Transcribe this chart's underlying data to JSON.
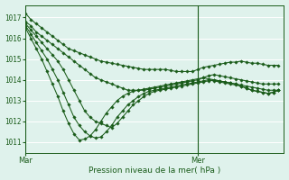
{
  "title": "Pression niveau de la mer( hPa )",
  "xlabel_mar": "Mar",
  "xlabel_mer": "Mer",
  "bg_color": "#dff2ec",
  "grid_color": "#ffffff",
  "line_color": "#1a5c1a",
  "ylim": [
    1010.5,
    1017.6
  ],
  "yticks": [
    1011,
    1012,
    1013,
    1014,
    1015,
    1016,
    1017
  ],
  "xlim": [
    0,
    48
  ],
  "mar_x": 0,
  "mer_x": 32,
  "series": [
    [
      1017.2,
      1016.9,
      1016.7,
      1016.5,
      1016.3,
      1016.1,
      1015.9,
      1015.7,
      1015.5,
      1015.4,
      1015.3,
      1015.2,
      1015.1,
      1015.0,
      1014.9,
      1014.85,
      1014.8,
      1014.75,
      1014.7,
      1014.65,
      1014.6,
      1014.55,
      1014.5,
      1014.5,
      1014.5,
      1014.5,
      1014.5,
      1014.45,
      1014.4,
      1014.4,
      1014.4,
      1014.4,
      1014.5,
      1014.6,
      1014.65,
      1014.7,
      1014.75,
      1014.8,
      1014.85,
      1014.85,
      1014.9,
      1014.85,
      1014.8,
      1014.8,
      1014.75,
      1014.7,
      1014.7,
      1014.7
    ],
    [
      1016.8,
      1016.6,
      1016.3,
      1016.1,
      1015.9,
      1015.7,
      1015.5,
      1015.3,
      1015.1,
      1014.9,
      1014.7,
      1014.5,
      1014.3,
      1014.1,
      1014.0,
      1013.9,
      1013.8,
      1013.7,
      1013.6,
      1013.5,
      1013.5,
      1013.5,
      1013.5,
      1013.55,
      1013.6,
      1013.65,
      1013.7,
      1013.75,
      1013.8,
      1013.85,
      1013.9,
      1013.95,
      1014.0,
      1014.1,
      1014.2,
      1014.25,
      1014.2,
      1014.15,
      1014.1,
      1014.05,
      1014.0,
      1013.95,
      1013.9,
      1013.85,
      1013.8,
      1013.8,
      1013.8,
      1013.8
    ],
    [
      1016.7,
      1016.4,
      1016.1,
      1015.8,
      1015.5,
      1015.2,
      1014.9,
      1014.5,
      1014.0,
      1013.5,
      1013.0,
      1012.5,
      1012.2,
      1012.0,
      1011.9,
      1011.8,
      1011.7,
      1011.9,
      1012.2,
      1012.5,
      1012.8,
      1013.0,
      1013.2,
      1013.35,
      1013.45,
      1013.5,
      1013.55,
      1013.6,
      1013.65,
      1013.7,
      1013.75,
      1013.8,
      1013.85,
      1013.9,
      1013.95,
      1014.0,
      1013.95,
      1013.9,
      1013.85,
      1013.8,
      1013.75,
      1013.7,
      1013.65,
      1013.6,
      1013.55,
      1013.5,
      1013.5,
      1013.5
    ],
    [
      1016.6,
      1016.2,
      1015.8,
      1015.4,
      1015.0,
      1014.5,
      1014.0,
      1013.4,
      1012.8,
      1012.2,
      1011.8,
      1011.5,
      1011.3,
      1011.2,
      1011.25,
      1011.5,
      1011.8,
      1012.2,
      1012.5,
      1012.8,
      1013.0,
      1013.2,
      1013.35,
      1013.45,
      1013.5,
      1013.55,
      1013.6,
      1013.65,
      1013.7,
      1013.75,
      1013.8,
      1013.85,
      1013.9,
      1013.95,
      1014.0,
      1013.95,
      1013.9,
      1013.85,
      1013.8,
      1013.75,
      1013.7,
      1013.6,
      1013.5,
      1013.45,
      1013.4,
      1013.35,
      1013.4,
      1013.5
    ],
    [
      1016.5,
      1016.0,
      1015.5,
      1015.0,
      1014.4,
      1013.8,
      1013.2,
      1012.5,
      1011.9,
      1011.4,
      1011.1,
      1011.15,
      1011.3,
      1011.6,
      1012.0,
      1012.4,
      1012.7,
      1013.0,
      1013.2,
      1013.35,
      1013.45,
      1013.5,
      1013.55,
      1013.6,
      1013.65,
      1013.7,
      1013.75,
      1013.8,
      1013.85,
      1013.9,
      1013.95,
      1014.0,
      1014.05,
      1014.1,
      1014.05,
      1014.0,
      1013.95,
      1013.9,
      1013.85,
      1013.8,
      1013.7,
      1013.6,
      1013.5,
      1013.45,
      1013.4,
      1013.35,
      1013.4,
      1013.5
    ]
  ]
}
